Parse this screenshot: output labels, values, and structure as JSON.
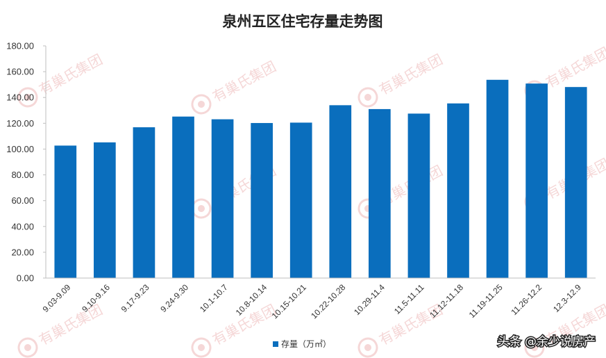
{
  "chart_data": {
    "type": "bar",
    "title": "泉州五区住宅存量走势图",
    "categories": [
      "9.03-9.09",
      "9.10-9.16",
      "9.17-9.23",
      "9.24-9.30",
      "10.1-10.7",
      "10.8-10.14",
      "10.15-10.21",
      "10.22-10.28",
      "10.29-11.4",
      "11.5-11.11",
      "11.12-11.18",
      "11.19-11.25",
      "11.26-12.2",
      "12.3-12.9"
    ],
    "series": [
      {
        "name": "存量（万㎡）",
        "values": [
          102.7,
          105.2,
          116.9,
          125.2,
          123.1,
          120.2,
          120.5,
          134.0,
          131.0,
          127.5,
          135.4,
          153.7,
          150.8,
          148.1
        ]
      }
    ],
    "yticks": [
      "0.00",
      "20.00",
      "40.00",
      "60.00",
      "80.00",
      "100.00",
      "120.00",
      "140.00",
      "160.00",
      "180.00"
    ],
    "ylim": [
      0,
      180
    ],
    "xlabel": "",
    "ylabel": "",
    "legend_position": "bottom",
    "grid": false,
    "bar_color": "#0a6ebd"
  },
  "legend": {
    "label": "存量（万㎡）"
  },
  "watermark": {
    "text": "有巢氏集团"
  },
  "credit": {
    "text": "头条 @余少说房产"
  }
}
